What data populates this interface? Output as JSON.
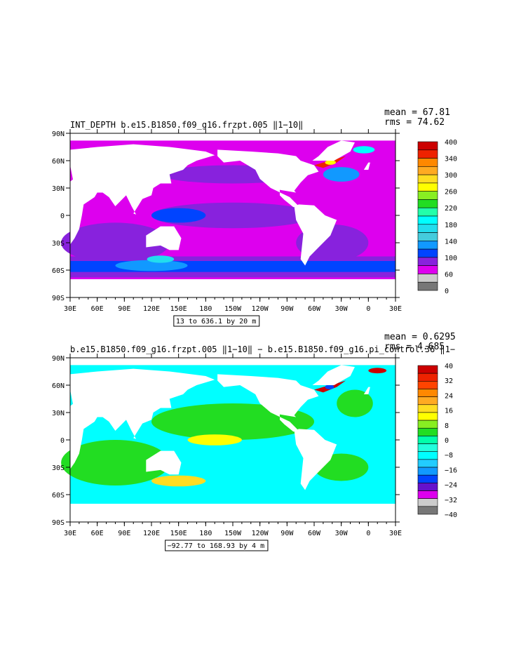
{
  "chart_data": [
    {
      "type": "heatmap",
      "title": "INT_DEPTH b.e15.B1850.f09_g16.frzpt.005 ‖1−10‖",
      "mean_label": "mean = 67.81",
      "rms_label": "rms = 74.62",
      "contour_info": "13 to 636.1 by 20 m",
      "x_ticks": [
        "30E",
        "60E",
        "90E",
        "120E",
        "150E",
        "180",
        "150W",
        "120W",
        "90W",
        "60W",
        "30W",
        "0",
        "30E"
      ],
      "y_ticks": [
        "90N",
        "60N",
        "30N",
        "0",
        "30S",
        "60S",
        "90S"
      ],
      "colorbar_labels": [
        "400",
        "340",
        "300",
        "260",
        "220",
        "180",
        "140",
        "100",
        "60",
        "0"
      ],
      "colorbar_colors": [
        "#cc0000",
        "#ee2200",
        "#ff8800",
        "#ffaa22",
        "#ffdd22",
        "#ffff00",
        "#88ee22",
        "#22dd22",
        "#22ffaa",
        "#00ffff",
        "#22ddee",
        "#44ccdd",
        "#1199ff",
        "#0044ff",
        "#8822dd",
        "#dd00ee",
        "#cccccc",
        "#777777"
      ]
    },
    {
      "type": "heatmap",
      "title": "b.e15.B1850.f09_g16.frzpt.005 ‖1−10‖ − b.e15.B1850.f09_g16.pi_control.36 ‖1−",
      "mean_label": "mean = 0.6295",
      "rms_label": "rms = 4.685",
      "contour_info": "−92.77 to 168.93 by 4 m",
      "x_ticks": [
        "30E",
        "60E",
        "90E",
        "120E",
        "150E",
        "180",
        "150W",
        "120W",
        "90W",
        "60W",
        "30W",
        "0",
        "30E"
      ],
      "y_ticks": [
        "90N",
        "60N",
        "30N",
        "0",
        "30S",
        "60S",
        "90S"
      ],
      "colorbar_labels": [
        "40",
        "32",
        "24",
        "16",
        "8",
        "0",
        "−8",
        "−16",
        "−24",
        "−32",
        "−40"
      ],
      "colorbar_colors": [
        "#cc0000",
        "#ee2200",
        "#ff4400",
        "#ff8800",
        "#ffaa22",
        "#ffdd22",
        "#ffff00",
        "#88ee22",
        "#22dd22",
        "#00ffaa",
        "#22ffdd",
        "#00ffff",
        "#22ccff",
        "#1199ff",
        "#0044ff",
        "#6611cc",
        "#dd00ee",
        "#cccccc",
        "#777777"
      ]
    }
  ]
}
